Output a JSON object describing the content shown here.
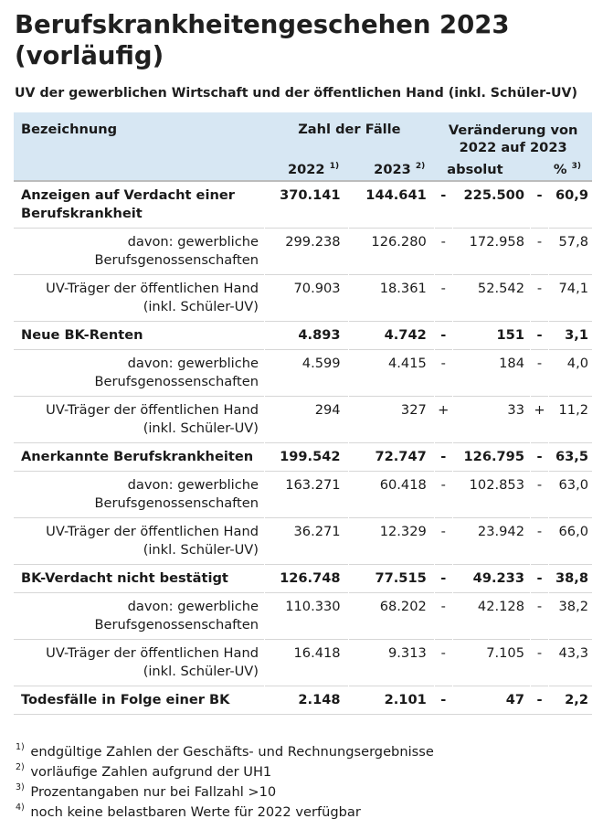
{
  "title": "Berufskrankheitengeschehen 2023 (vorläufig)",
  "subtitle": "UV der gewerblichen Wirtschaft und der öffentlichen Hand (inkl. Schüler-UV)",
  "header": {
    "col_label": "Bezeichnung",
    "col_count": "Zahl der Fälle",
    "col_change": "Veränderung von 2022 auf 2023",
    "year_2022": "2022",
    "year_2022_note": "1)",
    "year_2023": "2023",
    "year_2023_note": "2)",
    "absolute": "absolut",
    "percent": "%",
    "percent_note": "3)"
  },
  "rows": [
    {
      "label": "Anzeigen auf Verdacht einer Berufskrankheit",
      "y2022": "370.141",
      "y2023": "144.641",
      "sign_abs": "-",
      "abs": "225.500",
      "sign_pct": "-",
      "pct": "60,9"
    },
    {
      "label": "davon: gewerbliche Berufsgenossenschaften",
      "y2022": "299.238",
      "y2023": "126.280",
      "sign_abs": "-",
      "abs": "172.958",
      "sign_pct": "-",
      "pct": "57,8"
    },
    {
      "label": "UV-Träger der öffentlichen Hand (inkl. Schüler-UV)",
      "y2022": "70.903",
      "y2023": "18.361",
      "sign_abs": "-",
      "abs": "52.542",
      "sign_pct": "-",
      "pct": "74,1"
    },
    {
      "label": "Neue BK-Renten",
      "y2022": "4.893",
      "y2023": "4.742",
      "sign_abs": "-",
      "abs": "151",
      "sign_pct": "-",
      "pct": "3,1"
    },
    {
      "label": "davon: gewerbliche Berufsgenossenschaften",
      "y2022": "4.599",
      "y2023": "4.415",
      "sign_abs": "-",
      "abs": "184",
      "sign_pct": "-",
      "pct": "4,0"
    },
    {
      "label": "UV-Träger der öffentlichen Hand (inkl. Schüler-UV)",
      "y2022": "294",
      "y2023": "327",
      "sign_abs": "+",
      "abs": "33",
      "sign_pct": "+",
      "pct": "11,2"
    },
    {
      "label": "Anerkannte Berufskrankheiten",
      "y2022": "199.542",
      "y2023": "72.747",
      "sign_abs": "-",
      "abs": "126.795",
      "sign_pct": "-",
      "pct": "63,5"
    },
    {
      "label": "davon: gewerbliche Berufsgenossenschaften",
      "y2022": "163.271",
      "y2023": "60.418",
      "sign_abs": "-",
      "abs": "102.853",
      "sign_pct": "-",
      "pct": "63,0"
    },
    {
      "label": "UV-Träger der öffentlichen Hand (inkl. Schüler-UV)",
      "y2022": "36.271",
      "y2023": "12.329",
      "sign_abs": "-",
      "abs": "23.942",
      "sign_pct": "-",
      "pct": "66,0"
    },
    {
      "label": "BK-Verdacht nicht bestätigt",
      "y2022": "126.748",
      "y2023": "77.515",
      "sign_abs": "-",
      "abs": "49.233",
      "sign_pct": "-",
      "pct": "38,8"
    },
    {
      "label": "davon: gewerbliche Berufsgenossenschaften",
      "y2022": "110.330",
      "y2023": "68.202",
      "sign_abs": "-",
      "abs": "42.128",
      "sign_pct": "-",
      "pct": "38,2"
    },
    {
      "label": "UV-Träger der öffentlichen Hand (inkl. Schüler-UV)",
      "y2022": "16.418",
      "y2023": "9.313",
      "sign_abs": "-",
      "abs": "7.105",
      "sign_pct": "-",
      "pct": "43,3"
    },
    {
      "label": "Todesfälle in Folge einer BK",
      "y2022": "2.148",
      "y2023": "2.101",
      "sign_abs": "-",
      "abs": "47",
      "sign_pct": "-",
      "pct": "2,2"
    }
  ],
  "footnotes": [
    {
      "mark": "1)",
      "text": "endgültige Zahlen der Geschäfts- und Rechnungsergebnisse"
    },
    {
      "mark": "2)",
      "text": "vorläufige Zahlen aufgrund der UH1"
    },
    {
      "mark": "3)",
      "text": "Prozentangaben nur bei Fallzahl >10"
    },
    {
      "mark": "4)",
      "text": "noch keine belastbaren Werte für 2022 verfügbar"
    }
  ],
  "colors": {
    "header_bg": "#d7e7f3",
    "text": "#1a1a1a",
    "rule": "#d6d6d6"
  }
}
